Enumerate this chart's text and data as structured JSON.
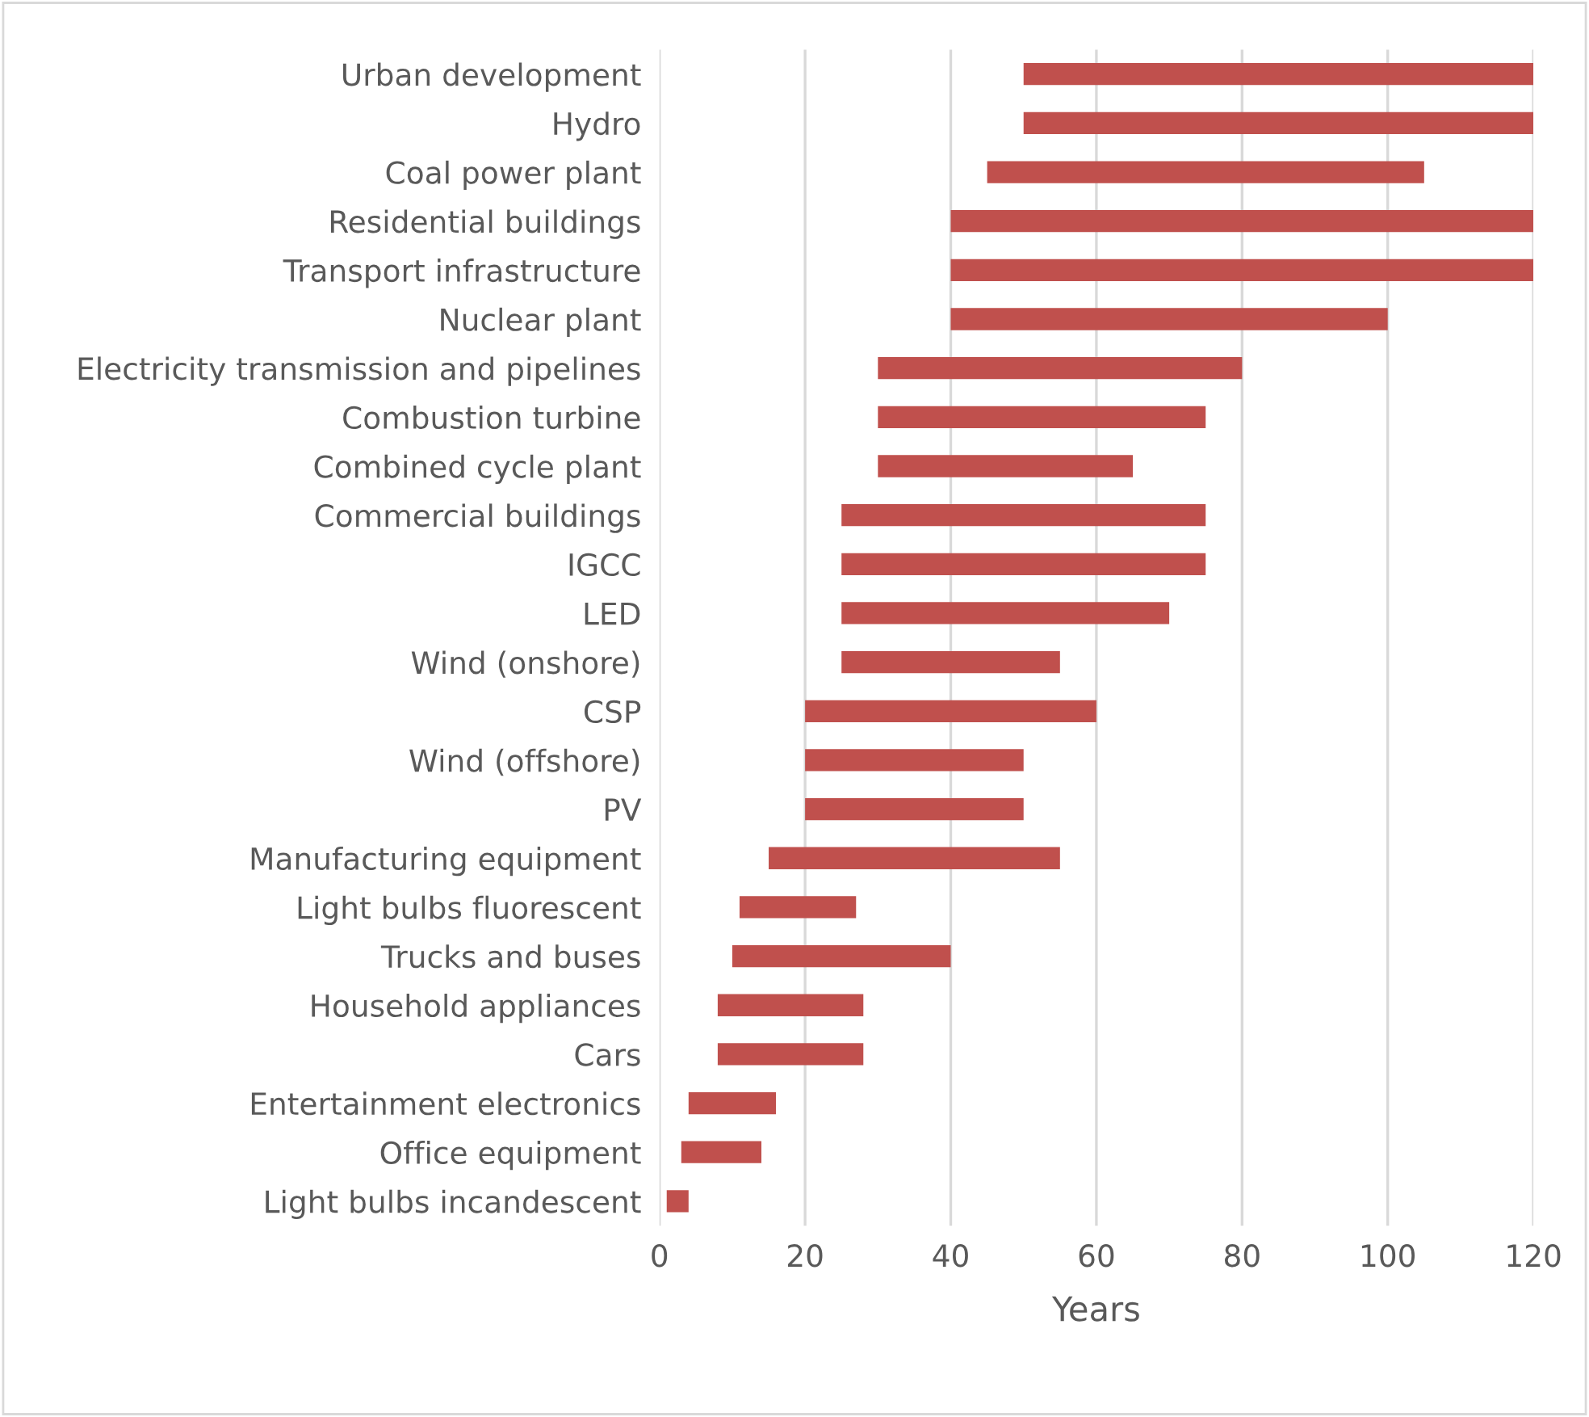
{
  "chart_data": {
    "type": "bar",
    "orientation": "horizontal",
    "xlabel": "Years",
    "categories": [
      "Urban development",
      "Hydro",
      "Coal power plant",
      "Residential buildings",
      "Transport infrastructure",
      "Nuclear plant",
      "Electricity transmission and pipelines",
      "Combustion turbine",
      "Combined cycle plant",
      "Commercial buildings",
      "IGCC",
      "LED",
      "Wind (onshore)",
      "CSP",
      "Wind (offshore)",
      "PV",
      "Manufacturing equipment",
      "Light bulbs fluorescent",
      "Trucks and buses",
      "Household appliances",
      "Cars",
      "Entertainment electronics",
      "Office equipment",
      "Light bulbs incandescent"
    ],
    "base": [
      50,
      50,
      45,
      40,
      40,
      40,
      30,
      30,
      30,
      25,
      25,
      25,
      25,
      20,
      20,
      20,
      15,
      11,
      10,
      8,
      8,
      4,
      3,
      1
    ],
    "values": [
      70,
      70,
      60,
      80,
      80,
      60,
      50,
      45,
      35,
      50,
      50,
      45,
      30,
      40,
      30,
      30,
      40,
      16,
      30,
      20,
      20,
      12,
      11,
      3
    ],
    "color": "#c0504d",
    "xlim": [
      0,
      120
    ],
    "xticks": [
      0,
      20,
      40,
      60,
      80,
      100,
      120
    ],
    "grid": "x",
    "legend": false
  }
}
